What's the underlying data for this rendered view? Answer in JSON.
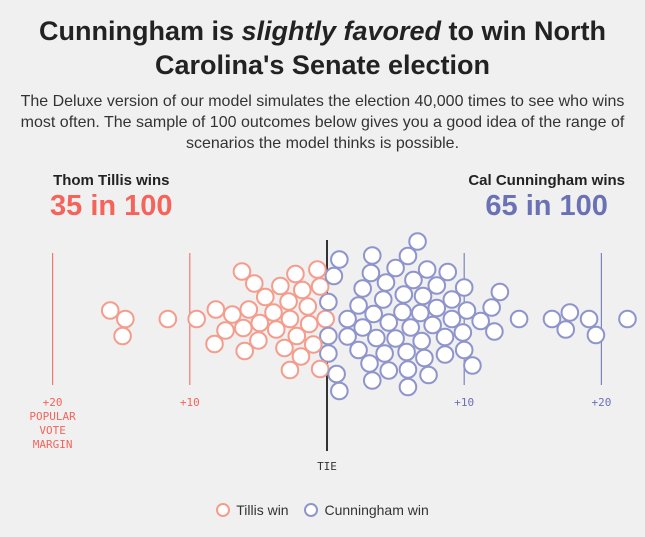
{
  "header": {
    "title_pre": "Cunningham is ",
    "title_em": "slightly favored",
    "title_post": " to win North Carolina's Senate election",
    "subtitle": "The Deluxe version of our model simulates the election 40,000 times to see who wins most often. The sample of 100 outcomes below gives you a good idea of the range of scenarios the model thinks is possible."
  },
  "left": {
    "label": "Thom Tillis wins",
    "count": "35 in 100"
  },
  "right": {
    "label": "Cal Cunningham wins",
    "count": "65 in 100"
  },
  "colors": {
    "tillis": "#f59d8d",
    "tillis_text": "#f5645a",
    "cunningham": "#8f95cc",
    "cunningham_text": "#6a71b5",
    "tie": "#333333"
  },
  "legend": {
    "tillis": "Tillis win",
    "cunningham": "Cunningham win"
  },
  "chart_data": {
    "type": "scatter",
    "subtype": "beeswarm",
    "xlabel": "POPULAR VOTE MARGIN",
    "tie_label": "TIE",
    "xlim": [
      -24,
      24
    ],
    "ticks": [
      {
        "value": -20,
        "label": "+20"
      },
      {
        "value": -10,
        "label": "+10"
      },
      {
        "value": 10,
        "label": "+10"
      },
      {
        "value": 20,
        "label": "+20"
      }
    ],
    "series": [
      {
        "name": "Tillis win",
        "values": [
          -15.8,
          -14.9,
          -14.7,
          -11.6,
          -9.5,
          -8.1,
          -8.2,
          -6.9,
          -7.4,
          -6.0,
          -5.3,
          -5.7,
          -6.1,
          -6.2,
          -4.5,
          -4.9,
          -5.0,
          -3.9,
          -3.4,
          -3.7,
          -3.1,
          -2.7,
          -2.8,
          -2.2,
          -2.3,
          -2.7,
          -1.9,
          -1.8,
          -1.3,
          -1.0,
          -0.7,
          -1.4,
          -0.5,
          -0.1,
          -0.5
        ]
      },
      {
        "name": "Cunningham win",
        "values": [
          0.5,
          0.1,
          0.9,
          1.5,
          0.7,
          0.1,
          1.5,
          0.9,
          0.1,
          3.4,
          2.6,
          2.3,
          3.3,
          3.3,
          2.3,
          3.6,
          2.6,
          3.1,
          3.2,
          5.0,
          4.1,
          4.3,
          4.5,
          5.0,
          4.2,
          4.5,
          5.9,
          6.3,
          5.5,
          5.8,
          6.1,
          5.9,
          5.6,
          5.9,
          7.3,
          7.4,
          6.6,
          6.9,
          7.7,
          7.0,
          6.8,
          7.1,
          8.6,
          8.8,
          8.0,
          9.1,
          8.6,
          8.0,
          9.1,
          10.2,
          9.9,
          10.6,
          10.0,
          10.0,
          12.2,
          12.0,
          11.2,
          12.6,
          14.0,
          16.4,
          17.4,
          17.7,
          19.1,
          19.6,
          21.9
        ]
      }
    ]
  }
}
